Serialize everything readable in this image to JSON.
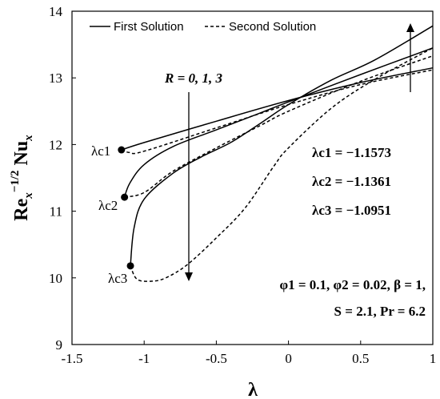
{
  "chart_data": {
    "type": "line",
    "xlabel": "λ",
    "ylabel_parts": [
      "Re",
      "x",
      "−1/2",
      "Nu",
      "x"
    ],
    "xlim": [
      -1.5,
      1
    ],
    "ylim": [
      9,
      14
    ],
    "xticks": [
      "-1.5",
      "-1",
      "-0.5",
      "0",
      "0.5",
      "1"
    ],
    "yticks": [
      "9",
      "10",
      "11",
      "12",
      "13",
      "14"
    ],
    "grid": false,
    "legend": [
      "First Solution",
      "Second Solution"
    ],
    "legend_position": "top",
    "annotation_R": "R = 0, 1, 3",
    "annotation_params_line1": "φ1 = 0.1, φ2 = 0.02, β = 1,",
    "annotation_params_line2": "S = 2.1, Pr = 6.2",
    "critical_values": [
      {
        "label": "λc1",
        "text": "λc1 = −1.1573",
        "x": -1.1573,
        "y": 11.92
      },
      {
        "label": "λc2",
        "text": "λc2 = −1.1361",
        "x": -1.1361,
        "y": 11.21
      },
      {
        "label": "λc3",
        "text": "λc3 = −1.0951",
        "x": -1.0951,
        "y": 10.18
      }
    ],
    "series": [
      {
        "R": 0,
        "solution": "First Solution",
        "style": "solid",
        "x": [
          -1.1573,
          -1.0,
          -0.5,
          0.0,
          0.5,
          1.0
        ],
        "y": [
          11.92,
          12.03,
          12.35,
          12.66,
          12.93,
          13.15
        ]
      },
      {
        "R": 0,
        "solution": "Second Solution",
        "style": "dashed",
        "x": [
          -1.1573,
          -1.1,
          -1.0,
          -0.5,
          0.0,
          0.5,
          1.0
        ],
        "y": [
          11.92,
          11.88,
          11.9,
          12.25,
          12.6,
          12.9,
          13.12
        ]
      },
      {
        "R": 1,
        "solution": "First Solution",
        "style": "solid",
        "x": [
          -1.1361,
          -1.1,
          -1.0,
          -0.8,
          -0.5,
          -0.2,
          0.0,
          0.5,
          1.0
        ],
        "y": [
          11.21,
          11.42,
          11.7,
          11.97,
          12.22,
          12.47,
          12.64,
          13.05,
          13.45
        ]
      },
      {
        "R": 1,
        "solution": "Second Solution",
        "style": "dashed",
        "x": [
          -1.1361,
          -1.0,
          -0.8,
          -0.5,
          -0.2,
          0.0,
          0.5,
          1.0
        ],
        "y": [
          11.21,
          11.28,
          11.6,
          11.95,
          12.28,
          12.5,
          12.95,
          13.33
        ]
      },
      {
        "R": 3,
        "solution": "First Solution",
        "style": "solid",
        "x": [
          -1.0951,
          -1.07,
          -1.0,
          -0.8,
          -0.6,
          -0.4,
          -0.2,
          0.0,
          0.3,
          0.6,
          1.0
        ],
        "y": [
          10.18,
          10.75,
          11.18,
          11.57,
          11.82,
          12.03,
          12.31,
          12.6,
          12.97,
          13.27,
          13.78
        ]
      },
      {
        "R": 3,
        "solution": "Second Solution",
        "style": "dashed",
        "x": [
          -1.0951,
          -1.05,
          -0.95,
          -0.85,
          -0.7,
          -0.5,
          -0.3,
          -0.1,
          0.0,
          0.3,
          0.6,
          1.0
        ],
        "y": [
          10.18,
          9.98,
          9.95,
          10.0,
          10.2,
          10.6,
          11.05,
          11.68,
          11.95,
          12.55,
          12.98,
          13.45
        ]
      }
    ]
  }
}
